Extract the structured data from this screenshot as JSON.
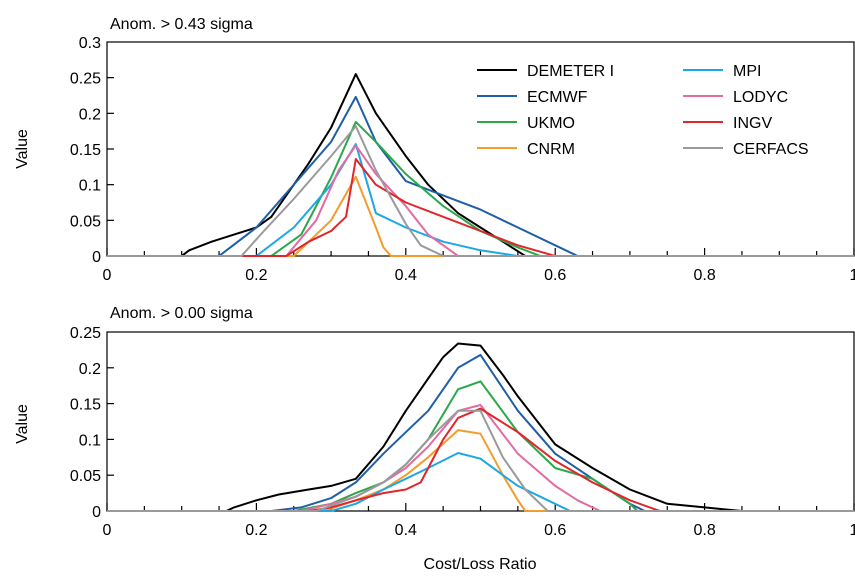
{
  "figure": {
    "xlabel": "Cost/Loss Ratio"
  },
  "colors": {
    "DEMETER I": "#000000",
    "ECMWF": "#1f5fa5",
    "UKMO": "#2aa84a",
    "CNRM": "#f39c2c",
    "MPI": "#1ea7e4",
    "LODYC": "#e36ba2",
    "INGV": "#e0262b",
    "CERFACS": "#9a9a9a"
  },
  "legend": [
    "DEMETER I",
    "MPI",
    "ECMWF",
    "LODYC",
    "UKMO",
    "INGV",
    "CNRM",
    "CERFACS"
  ],
  "chart_data": [
    {
      "type": "line",
      "title": "Anom. >  0.43 sigma",
      "xlabel": "",
      "ylabel": "Value",
      "xlim": [
        0,
        1
      ],
      "ylim": [
        0,
        0.3
      ],
      "xticks": [
        "0",
        "0.2",
        "0.4",
        "0.6",
        "0.8",
        "1"
      ],
      "yticks": [
        "0",
        "0.05",
        "0.1",
        "0.15",
        "0.2",
        "0.25",
        "0.3"
      ],
      "series": [
        {
          "name": "DEMETER I",
          "x": [
            0,
            0.1,
            0.11,
            0.14,
            0.17,
            0.2,
            0.22,
            0.25,
            0.27,
            0.3,
            0.333,
            0.36,
            0.4,
            0.43,
            0.47,
            0.5,
            0.53,
            0.56,
            0.6,
            1
          ],
          "y": [
            0,
            0,
            0.008,
            0.02,
            0.03,
            0.04,
            0.055,
            0.1,
            0.13,
            0.18,
            0.255,
            0.2,
            0.14,
            0.1,
            0.06,
            0.04,
            0.02,
            0,
            0,
            0
          ]
        },
        {
          "name": "ECMWF",
          "x": [
            0,
            0.15,
            0.2,
            0.25,
            0.3,
            0.333,
            0.36,
            0.4,
            0.45,
            0.5,
            0.55,
            0.6,
            0.63,
            1
          ],
          "y": [
            0,
            0,
            0.04,
            0.1,
            0.16,
            0.223,
            0.16,
            0.105,
            0.085,
            0.065,
            0.04,
            0.015,
            0,
            0
          ]
        },
        {
          "name": "UKMO",
          "x": [
            0,
            0.22,
            0.26,
            0.3,
            0.333,
            0.36,
            0.4,
            0.45,
            0.5,
            0.55,
            0.58,
            1
          ],
          "y": [
            0,
            0,
            0.03,
            0.11,
            0.188,
            0.16,
            0.115,
            0.07,
            0.035,
            0.012,
            0,
            0
          ]
        },
        {
          "name": "CNRM",
          "x": [
            0,
            0.25,
            0.3,
            0.333,
            0.36,
            0.37,
            0.38,
            1
          ],
          "y": [
            0,
            0,
            0.05,
            0.111,
            0.04,
            0.012,
            0,
            0
          ]
        },
        {
          "name": "MPI",
          "x": [
            0,
            0.2,
            0.25,
            0.3,
            0.333,
            0.36,
            0.4,
            0.45,
            0.5,
            0.55,
            1
          ],
          "y": [
            0,
            0,
            0.04,
            0.1,
            0.157,
            0.06,
            0.04,
            0.02,
            0.008,
            0,
            0
          ]
        },
        {
          "name": "LODYC",
          "x": [
            0,
            0.24,
            0.28,
            0.31,
            0.333,
            0.36,
            0.4,
            0.43,
            0.47,
            1
          ],
          "y": [
            0,
            0,
            0.05,
            0.12,
            0.155,
            0.115,
            0.07,
            0.03,
            0,
            0
          ]
        },
        {
          "name": "INGV",
          "x": [
            0,
            0.24,
            0.27,
            0.3,
            0.32,
            0.333,
            0.36,
            0.4,
            0.45,
            0.5,
            0.55,
            0.6,
            1
          ],
          "y": [
            0,
            0,
            0.02,
            0.035,
            0.055,
            0.136,
            0.1,
            0.075,
            0.055,
            0.035,
            0.015,
            0,
            0
          ]
        },
        {
          "name": "CERFACS",
          "x": [
            0,
            0.18,
            0.21,
            0.25,
            0.3,
            0.333,
            0.36,
            0.4,
            0.42,
            0.45,
            1
          ],
          "y": [
            0,
            0,
            0.035,
            0.08,
            0.14,
            0.182,
            0.12,
            0.045,
            0.015,
            0,
            0
          ]
        }
      ]
    },
    {
      "type": "line",
      "title": "Anom. >  0.00 sigma",
      "xlabel": "Cost/Loss Ratio",
      "ylabel": "Value",
      "xlim": [
        0,
        1
      ],
      "ylim": [
        0,
        0.25
      ],
      "xticks": [
        "0",
        "0.2",
        "0.4",
        "0.6",
        "0.8",
        "1"
      ],
      "yticks": [
        "0",
        "0.05",
        "0.1",
        "0.15",
        "0.2",
        "0.25"
      ],
      "series": [
        {
          "name": "DEMETER I",
          "x": [
            0,
            0.16,
            0.17,
            0.2,
            0.23,
            0.27,
            0.3,
            0.333,
            0.37,
            0.4,
            0.43,
            0.45,
            0.47,
            0.5,
            0.53,
            0.55,
            0.6,
            0.65,
            0.7,
            0.75,
            0.8,
            0.83,
            0.85,
            1
          ],
          "y": [
            0,
            0,
            0.005,
            0.015,
            0.023,
            0.03,
            0.035,
            0.045,
            0.09,
            0.14,
            0.185,
            0.215,
            0.234,
            0.231,
            0.19,
            0.16,
            0.093,
            0.06,
            0.03,
            0.01,
            0.005,
            0.002,
            0,
            0
          ]
        },
        {
          "name": "ECMWF",
          "x": [
            0,
            0.22,
            0.26,
            0.3,
            0.333,
            0.37,
            0.4,
            0.43,
            0.47,
            0.5,
            0.55,
            0.6,
            0.65,
            0.7,
            0.72,
            1
          ],
          "y": [
            0,
            0,
            0.005,
            0.018,
            0.04,
            0.08,
            0.11,
            0.14,
            0.2,
            0.218,
            0.14,
            0.08,
            0.045,
            0.01,
            0,
            0
          ]
        },
        {
          "name": "UKMO",
          "x": [
            0,
            0.25,
            0.3,
            0.333,
            0.37,
            0.4,
            0.43,
            0.47,
            0.5,
            0.55,
            0.6,
            0.65,
            0.7,
            0.71,
            1
          ],
          "y": [
            0,
            0,
            0.01,
            0.025,
            0.04,
            0.065,
            0.1,
            0.17,
            0.181,
            0.11,
            0.06,
            0.045,
            0.01,
            0,
            0
          ]
        },
        {
          "name": "CNRM",
          "x": [
            0,
            0.29,
            0.333,
            0.37,
            0.4,
            0.43,
            0.47,
            0.5,
            0.53,
            0.55,
            0.56,
            1
          ],
          "y": [
            0,
            0,
            0.015,
            0.03,
            0.05,
            0.075,
            0.113,
            0.108,
            0.05,
            0.015,
            0,
            0
          ]
        },
        {
          "name": "MPI",
          "x": [
            0,
            0.3,
            0.333,
            0.37,
            0.4,
            0.43,
            0.47,
            0.5,
            0.53,
            0.55,
            0.58,
            0.62,
            1
          ],
          "y": [
            0,
            0,
            0.01,
            0.03,
            0.045,
            0.06,
            0.081,
            0.073,
            0.05,
            0.035,
            0.02,
            0,
            0
          ]
        },
        {
          "name": "LODYC",
          "x": [
            0,
            0.26,
            0.3,
            0.333,
            0.37,
            0.4,
            0.43,
            0.47,
            0.5,
            0.55,
            0.6,
            0.63,
            0.66,
            1
          ],
          "y": [
            0,
            0,
            0.01,
            0.02,
            0.04,
            0.06,
            0.09,
            0.14,
            0.148,
            0.08,
            0.035,
            0.015,
            0,
            0
          ]
        },
        {
          "name": "INGV",
          "x": [
            0,
            0.27,
            0.3,
            0.333,
            0.37,
            0.4,
            0.42,
            0.45,
            0.47,
            0.5,
            0.55,
            0.6,
            0.65,
            0.7,
            0.74,
            1
          ],
          "y": [
            0,
            0,
            0.005,
            0.015,
            0.025,
            0.03,
            0.04,
            0.1,
            0.13,
            0.143,
            0.11,
            0.07,
            0.04,
            0.015,
            0,
            0
          ]
        },
        {
          "name": "CERFACS",
          "x": [
            0,
            0.28,
            0.333,
            0.37,
            0.4,
            0.43,
            0.47,
            0.5,
            0.53,
            0.56,
            0.59,
            1
          ],
          "y": [
            0,
            0,
            0.02,
            0.04,
            0.065,
            0.1,
            0.14,
            0.14,
            0.075,
            0.03,
            0,
            0
          ]
        }
      ]
    }
  ]
}
